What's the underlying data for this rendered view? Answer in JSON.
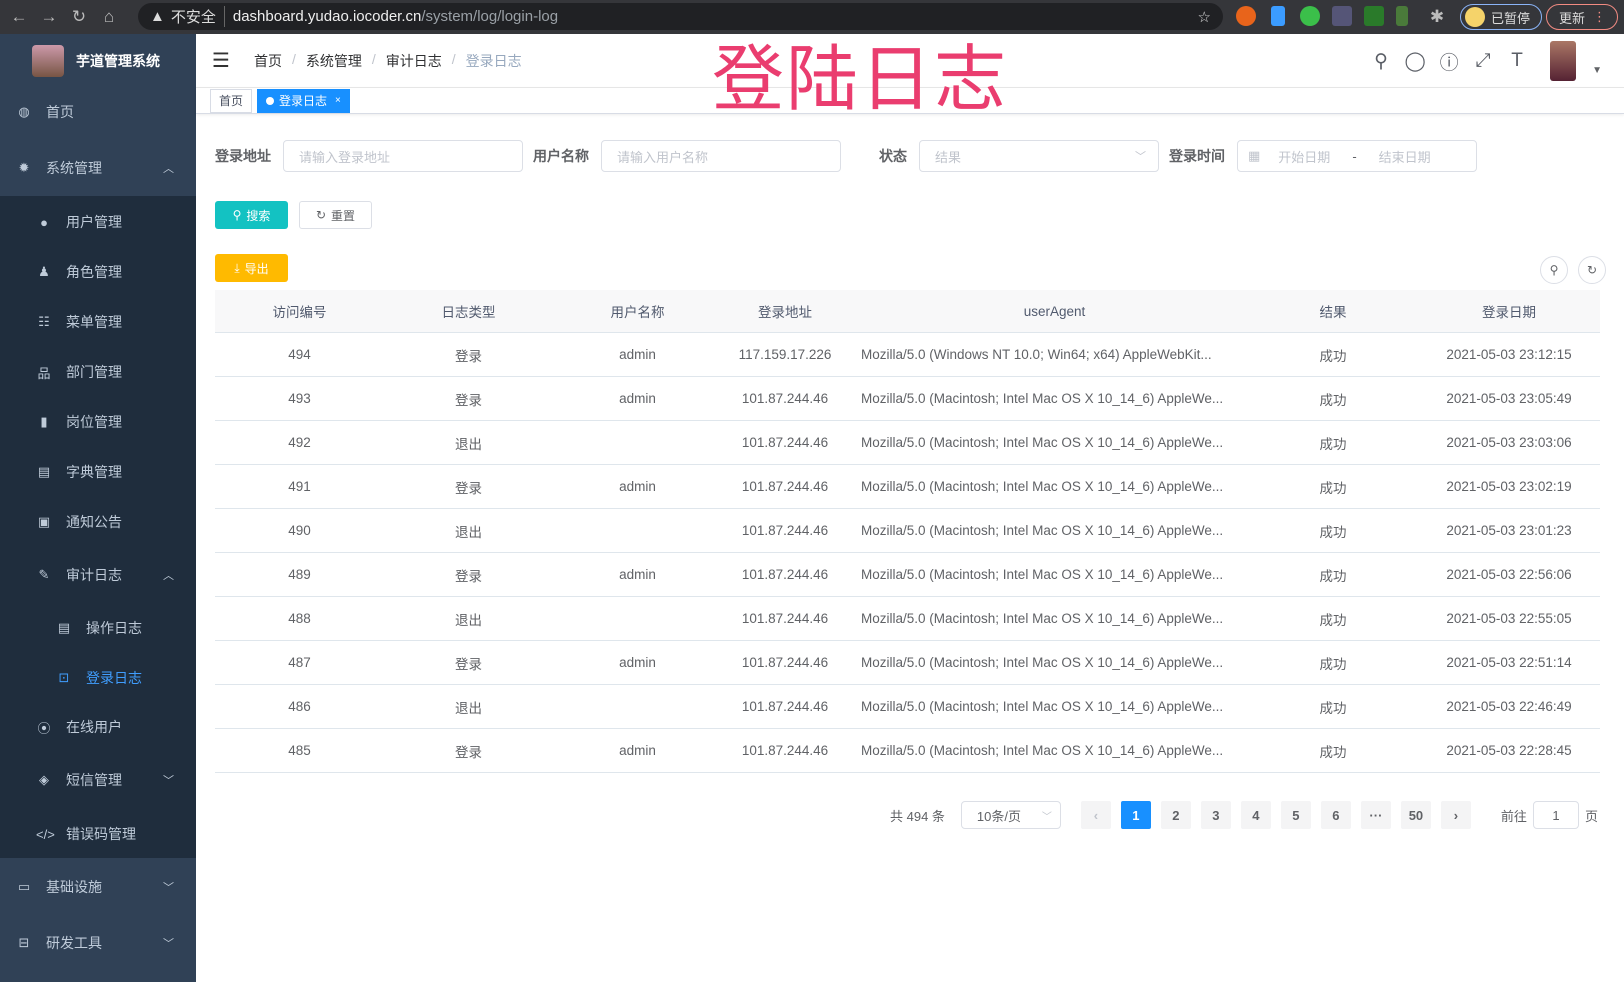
{
  "browser": {
    "insecure": "不安全",
    "host": "dashboard.yudao.iocoder.cn",
    "path": "/system/log/login-log",
    "paused": "已暂停",
    "update": "更新"
  },
  "overlay_title": "登陆日志",
  "sidebar": {
    "title": "芋道管理系统",
    "items": {
      "home": "首页",
      "system": "系统管理",
      "user": "用户管理",
      "role": "角色管理",
      "menu": "菜单管理",
      "dept": "部门管理",
      "post": "岗位管理",
      "dict": "字典管理",
      "notice": "通知公告",
      "audit": "审计日志",
      "oplog": "操作日志",
      "loginlog": "登录日志",
      "online": "在线用户",
      "sms": "短信管理",
      "errcode": "错误码管理",
      "infra": "基础设施",
      "devtools": "研发工具"
    }
  },
  "breadcrumb": [
    "首页",
    "系统管理",
    "审计日志",
    "登录日志"
  ],
  "tags": {
    "home": "首页",
    "current": "登录日志",
    "close": "×"
  },
  "filters": {
    "addr_label": "登录地址",
    "addr_placeholder": "请输入登录地址",
    "user_label": "用户名称",
    "user_placeholder": "请输入用户名称",
    "status_label": "状态",
    "status_placeholder": "结果",
    "time_label": "登录时间",
    "start_placeholder": "开始日期",
    "sep": "-",
    "end_placeholder": "结束日期"
  },
  "buttons": {
    "search": "搜索",
    "reset": "重置",
    "export": "导出"
  },
  "colors": {
    "sidebar": "#304156",
    "primary": "#1890ff",
    "search": "#13c2c2",
    "export": "#ffba00",
    "overlay": "#ea3d6f"
  },
  "table": {
    "columns": [
      "访问编号",
      "日志类型",
      "用户名称",
      "登录地址",
      "userAgent",
      "结果",
      "登录日期"
    ],
    "rows": [
      [
        "494",
        "登录",
        "admin",
        "117.159.17.226",
        "Mozilla/5.0 (Windows NT 10.0; Win64; x64) AppleWebKit...",
        "成功",
        "2021-05-03 23:12:15"
      ],
      [
        "493",
        "登录",
        "admin",
        "101.87.244.46",
        "Mozilla/5.0 (Macintosh; Intel Mac OS X 10_14_6) AppleWe...",
        "成功",
        "2021-05-03 23:05:49"
      ],
      [
        "492",
        "退出",
        "",
        "101.87.244.46",
        "Mozilla/5.0 (Macintosh; Intel Mac OS X 10_14_6) AppleWe...",
        "成功",
        "2021-05-03 23:03:06"
      ],
      [
        "491",
        "登录",
        "admin",
        "101.87.244.46",
        "Mozilla/5.0 (Macintosh; Intel Mac OS X 10_14_6) AppleWe...",
        "成功",
        "2021-05-03 23:02:19"
      ],
      [
        "490",
        "退出",
        "",
        "101.87.244.46",
        "Mozilla/5.0 (Macintosh; Intel Mac OS X 10_14_6) AppleWe...",
        "成功",
        "2021-05-03 23:01:23"
      ],
      [
        "489",
        "登录",
        "admin",
        "101.87.244.46",
        "Mozilla/5.0 (Macintosh; Intel Mac OS X 10_14_6) AppleWe...",
        "成功",
        "2021-05-03 22:56:06"
      ],
      [
        "488",
        "退出",
        "",
        "101.87.244.46",
        "Mozilla/5.0 (Macintosh; Intel Mac OS X 10_14_6) AppleWe...",
        "成功",
        "2021-05-03 22:55:05"
      ],
      [
        "487",
        "登录",
        "admin",
        "101.87.244.46",
        "Mozilla/5.0 (Macintosh; Intel Mac OS X 10_14_6) AppleWe...",
        "成功",
        "2021-05-03 22:51:14"
      ],
      [
        "486",
        "退出",
        "",
        "101.87.244.46",
        "Mozilla/5.0 (Macintosh; Intel Mac OS X 10_14_6) AppleWe...",
        "成功",
        "2021-05-03 22:46:49"
      ],
      [
        "485",
        "登录",
        "admin",
        "101.87.244.46",
        "Mozilla/5.0 (Macintosh; Intel Mac OS X 10_14_6) AppleWe...",
        "成功",
        "2021-05-03 22:28:45"
      ]
    ]
  },
  "pagination": {
    "total": "共 494 条",
    "page_size": "10条/页",
    "pages": [
      "1",
      "2",
      "3",
      "4",
      "5",
      "6",
      "···",
      "50"
    ],
    "current": "1",
    "goto_label": "前往",
    "goto_value": "1",
    "goto_suffix": "页"
  }
}
